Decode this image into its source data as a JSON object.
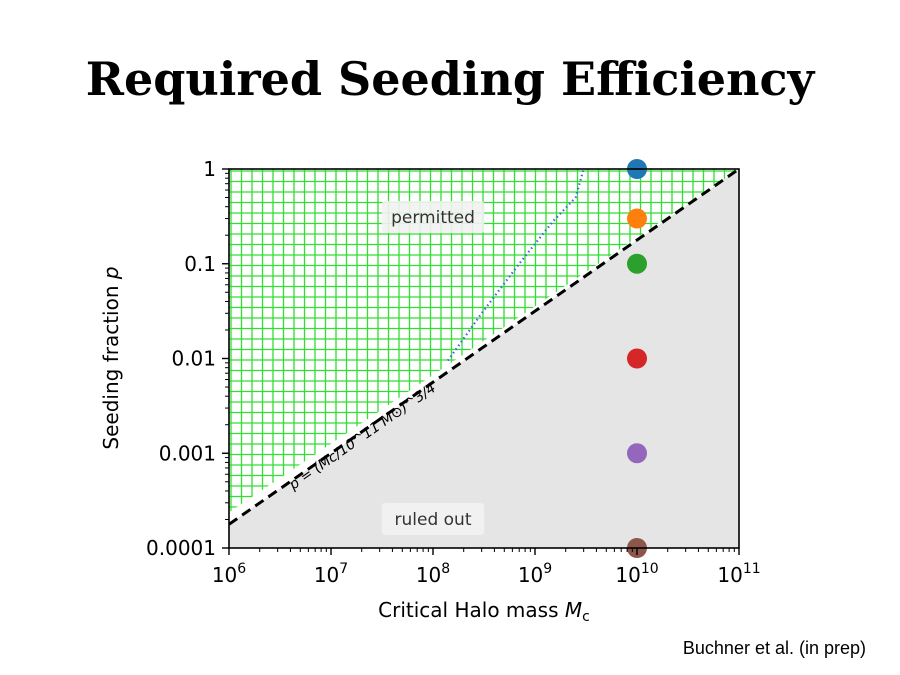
{
  "slide": {
    "title": "Required Seeding Efficiency",
    "citation": "Buchner et al. (in prep)"
  },
  "chart_data": {
    "type": "scatter",
    "xscale": "log",
    "yscale": "log",
    "xlim": [
      1000000,
      100000000000
    ],
    "ylim": [
      0.0001,
      1
    ],
    "xlabel": "Critical Halo mass",
    "xlabel_symbol": "M",
    "xlabel_subscript": "c",
    "ylabel": "Seeding fraction",
    "ylabel_symbol": "p",
    "x_ticks": [
      {
        "value": 1000000,
        "base": "10",
        "exp": "6"
      },
      {
        "value": 10000000,
        "base": "10",
        "exp": "7"
      },
      {
        "value": 100000000,
        "base": "10",
        "exp": "8"
      },
      {
        "value": 1000000000,
        "base": "10",
        "exp": "9"
      },
      {
        "value": 10000000000,
        "base": "10",
        "exp": "10"
      },
      {
        "value": 100000000000,
        "base": "10",
        "exp": "11"
      }
    ],
    "y_ticks": [
      {
        "value": 1,
        "label": "1"
      },
      {
        "value": 0.1,
        "label": "0.1"
      },
      {
        "value": 0.01,
        "label": "0.01"
      },
      {
        "value": 0.001,
        "label": "0.001"
      },
      {
        "value": 0.0001,
        "label": "0.0001"
      }
    ],
    "relation_line": {
      "style": "dashed",
      "color": "#000000",
      "exponent": 0.75,
      "pivot_mass": 100000000000,
      "label": "p = (Mc/10^11 M⊙)^3/4"
    },
    "dotted_curve": {
      "color": "#4a5ee8",
      "points": [
        [
          140000000,
          0.0095
        ],
        [
          300000000,
          0.03
        ],
        [
          700000000,
          0.1
        ],
        [
          1500000000,
          0.28
        ],
        [
          2500000000,
          0.5
        ],
        [
          3000000000,
          1
        ]
      ]
    },
    "regions": [
      {
        "label": "permitted",
        "fill": "hatch",
        "color": "#33dd33"
      },
      {
        "label": "ruled out",
        "fill": "solid",
        "color": "#e5e5e5"
      }
    ],
    "points": [
      {
        "x": 10000000000,
        "y": 1,
        "color": "#1f77b4"
      },
      {
        "x": 10000000000,
        "y": 0.3,
        "color": "#ff7f0e"
      },
      {
        "x": 10000000000,
        "y": 0.1,
        "color": "#2ca02c"
      },
      {
        "x": 10000000000,
        "y": 0.01,
        "color": "#d62728"
      },
      {
        "x": 10000000000,
        "y": 0.001,
        "color": "#9467bd"
      },
      {
        "x": 10000000000,
        "y": 0.0001,
        "color": "#8c564b"
      }
    ]
  }
}
